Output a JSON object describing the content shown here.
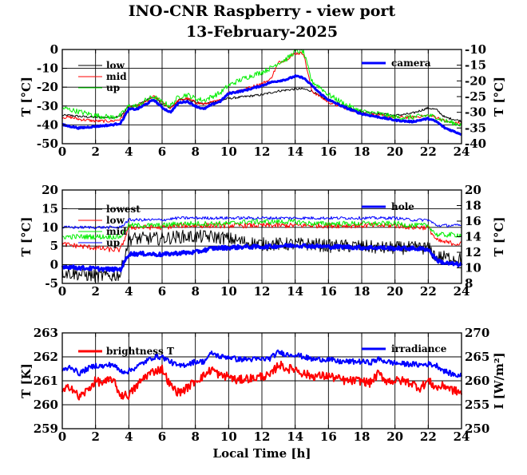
{
  "title": "INO-CNR Raspberry - view port",
  "subtitle": "13-February-2025",
  "xlabel": "Local Time [h]",
  "colors": {
    "black": "#000000",
    "red": "#ff0000",
    "green": "#00ee00",
    "blue": "#0000ff"
  },
  "chart_data": [
    {
      "type": "line",
      "ylabel": "T [°C]",
      "ylabel_right": "T [°C]",
      "xlim": [
        0,
        24
      ],
      "ylim": [
        -50,
        0
      ],
      "ylim_right": [
        -40,
        -10
      ],
      "x_ticks": [
        "0",
        "2",
        "4",
        "6",
        "8",
        "10",
        "12",
        "14",
        "16",
        "18",
        "20",
        "22",
        "24"
      ],
      "y_ticks": [
        "-50",
        "-40",
        "-30",
        "-20",
        "-10",
        "0"
      ],
      "y_ticks_right": [
        "-40",
        "-35",
        "-30",
        "-25",
        "-20",
        "-15",
        "-10"
      ],
      "grid": true,
      "series": [
        {
          "name": "low",
          "axis": "left",
          "color": "black",
          "width": 1,
          "noise": 0.6,
          "x": [
            0,
            0.5,
            1,
            2,
            3,
            3.5,
            4,
            4.5,
            5,
            5.5,
            6,
            6.5,
            7,
            7.5,
            8,
            8.5,
            9,
            9.5,
            10,
            11,
            12,
            13,
            14,
            14.5,
            15,
            15.5,
            16,
            17,
            18,
            19,
            20,
            21,
            22,
            22.5,
            23,
            23.5,
            24
          ],
          "y": [
            -35,
            -35,
            -35.5,
            -36,
            -36,
            -35.5,
            -30,
            -30,
            -27,
            -25,
            -29,
            -31,
            -27,
            -26,
            -28,
            -29,
            -28,
            -27,
            -26,
            -25,
            -24,
            -22,
            -21,
            -21,
            -22,
            -25,
            -27,
            -30,
            -33,
            -34,
            -35,
            -34,
            -31,
            -32,
            -36,
            -37,
            -38
          ]
        },
        {
          "name": "mid",
          "axis": "left",
          "color": "red",
          "width": 1,
          "noise": 0.8,
          "x": [
            0,
            0.5,
            1,
            2,
            3,
            3.5,
            4,
            4.5,
            5,
            5.5,
            6,
            6.5,
            7,
            7.5,
            8,
            8.5,
            9,
            9.5,
            10,
            11,
            12,
            12.5,
            13,
            13.5,
            14,
            14.5,
            15,
            15.5,
            16,
            17,
            18,
            19,
            20,
            21,
            22,
            22.5,
            23,
            23.5,
            24
          ],
          "y": [
            -36,
            -36,
            -37,
            -38,
            -38,
            -37,
            -31,
            -30,
            -28,
            -25,
            -28,
            -31,
            -27,
            -26,
            -28,
            -29,
            -28,
            -27,
            -23,
            -21,
            -18,
            -16,
            -7,
            -5,
            -2,
            -2,
            -22,
            -25,
            -28,
            -31,
            -34,
            -35,
            -36,
            -36,
            -35,
            -36,
            -38,
            -39,
            -39
          ]
        },
        {
          "name": "up",
          "axis": "left",
          "color": "green",
          "width": 1,
          "noise": 1.4,
          "x": [
            0,
            0.5,
            1,
            2,
            3,
            3.5,
            4,
            4.5,
            5,
            5.5,
            6,
            6.5,
            7,
            7.5,
            8,
            8.5,
            9,
            9.5,
            10,
            11,
            12,
            12.5,
            13,
            13.5,
            14,
            14.5,
            15,
            15.5,
            16,
            17,
            18,
            19,
            20,
            21,
            22,
            22.5,
            23,
            23.5,
            24
          ],
          "y": [
            -31,
            -32,
            -33,
            -35,
            -36,
            -35,
            -30,
            -30,
            -27,
            -25,
            -28,
            -30,
            -25,
            -24,
            -26,
            -27,
            -25,
            -23,
            -19,
            -15,
            -12,
            -10,
            -7,
            -5,
            -1,
            -1,
            -17,
            -20,
            -24,
            -29,
            -33,
            -34,
            -36,
            -36,
            -35,
            -36,
            -38,
            -39,
            -40
          ]
        },
        {
          "name": "camera",
          "axis": "right",
          "color": "blue",
          "width": 3,
          "noise": 0.25,
          "x": [
            0,
            0.5,
            1,
            2,
            3,
            3.5,
            4,
            4.5,
            5,
            5.5,
            6,
            6.5,
            7,
            7.5,
            8,
            8.5,
            9,
            9.5,
            10,
            11,
            12,
            12.5,
            13,
            13.5,
            14,
            14.5,
            15,
            15.5,
            16,
            17,
            18,
            19,
            20,
            21,
            22,
            22.5,
            23,
            23.5,
            24
          ],
          "y": [
            -34,
            -34.5,
            -35,
            -34.5,
            -34,
            -33.5,
            -29,
            -29,
            -27.5,
            -26,
            -28.5,
            -30,
            -27,
            -26.5,
            -28,
            -29,
            -27.5,
            -26.5,
            -24,
            -23,
            -21.5,
            -20.5,
            -20,
            -19.5,
            -18.5,
            -19,
            -21.5,
            -24,
            -26,
            -28.5,
            -30.5,
            -31.5,
            -32.5,
            -33,
            -32,
            -33,
            -35,
            -36,
            -37
          ]
        }
      ],
      "legend_left": [
        "low",
        "mid",
        "up"
      ],
      "legend_right": [
        "camera"
      ]
    },
    {
      "type": "line",
      "ylabel": "T [°C]",
      "ylabel_right": "T [°C]",
      "xlim": [
        0,
        24
      ],
      "ylim": [
        -5,
        20
      ],
      "ylim_right": [
        8,
        20
      ],
      "x_ticks": [
        "0",
        "2",
        "4",
        "6",
        "8",
        "10",
        "12",
        "14",
        "16",
        "18",
        "20",
        "22",
        "24"
      ],
      "y_ticks": [
        "-5",
        "0",
        "5",
        "10",
        "15",
        "20"
      ],
      "y_ticks_right": [
        "8",
        "10",
        "12",
        "14",
        "16",
        "18",
        "20"
      ],
      "grid": true,
      "series": [
        {
          "name": "lowest",
          "axis": "left",
          "color": "black",
          "width": 1,
          "noise": 1.8,
          "x": [
            0,
            1,
            2,
            3,
            3.5,
            4,
            5,
            6,
            7,
            8,
            9,
            10,
            11,
            12,
            13,
            14,
            15,
            16,
            17,
            18,
            19,
            20,
            21,
            22,
            22.5,
            23,
            24
          ],
          "y": [
            -2,
            -2.5,
            -3,
            -3,
            -2.5,
            7,
            7,
            7,
            7.5,
            7.5,
            7.5,
            7,
            6,
            5.5,
            5.5,
            5.5,
            5.5,
            5,
            5,
            5,
            4.5,
            4.5,
            4.5,
            4.5,
            2,
            2,
            1.5
          ]
        },
        {
          "name": "low",
          "axis": "left",
          "color": "red",
          "width": 1,
          "noise": 0.7,
          "x": [
            0,
            1,
            2,
            3,
            3.5,
            4,
            5,
            6,
            7,
            8,
            9,
            10,
            11,
            12,
            13,
            14,
            15,
            16,
            17,
            18,
            19,
            20,
            21,
            22,
            22.5,
            23,
            24
          ],
          "y": [
            5.5,
            5,
            4.5,
            4,
            4,
            10,
            10,
            10,
            10.5,
            10.5,
            10.5,
            10.5,
            10.5,
            10.5,
            10.5,
            10.5,
            10.5,
            10.5,
            10.5,
            10.5,
            10.5,
            10.5,
            10,
            10,
            6.5,
            6,
            5.5
          ]
        },
        {
          "name": "mid",
          "axis": "left",
          "color": "green",
          "width": 1,
          "noise": 0.7,
          "x": [
            0,
            1,
            2,
            3,
            3.5,
            4,
            5,
            6,
            7,
            8,
            9,
            10,
            11,
            12,
            13,
            14,
            15,
            16,
            17,
            18,
            19,
            20,
            21,
            22,
            22.5,
            23,
            24
          ],
          "y": [
            7.5,
            7.5,
            7.5,
            7.5,
            7.5,
            10.5,
            10.5,
            10.5,
            11,
            11,
            11,
            11,
            11.5,
            11.5,
            11.5,
            11.5,
            11,
            11,
            11,
            11,
            11,
            11,
            10.5,
            10.5,
            8,
            8,
            8
          ]
        },
        {
          "name": "up",
          "axis": "left",
          "color": "blue",
          "width": 1,
          "noise": 0.4,
          "x": [
            0,
            1,
            2,
            3,
            3.5,
            4,
            5,
            6,
            7,
            8,
            9,
            10,
            11,
            12,
            13,
            14,
            15,
            16,
            17,
            18,
            19,
            20,
            21,
            22,
            22.5,
            23,
            24
          ],
          "y": [
            10,
            10,
            10,
            10,
            10,
            12,
            12,
            12,
            12.5,
            12.5,
            12.5,
            12.5,
            12.5,
            12.5,
            12.5,
            12.5,
            12.5,
            12.5,
            12.5,
            12.5,
            12.5,
            12.5,
            12,
            12,
            10.5,
            10.5,
            10.5
          ]
        },
        {
          "name": "hole",
          "axis": "right",
          "color": "blue",
          "width": 3,
          "noise": 0.25,
          "x": [
            0,
            1,
            2,
            3,
            3.5,
            4,
            5,
            6,
            7,
            8,
            9,
            10,
            11,
            12,
            13,
            14,
            15,
            16,
            17,
            18,
            19,
            20,
            21,
            22,
            22.5,
            23,
            24
          ],
          "y": [
            10.2,
            10,
            9.9,
            9.8,
            9.8,
            11.8,
            11.8,
            11.7,
            11.9,
            12,
            12.5,
            12.6,
            12.7,
            12.7,
            12.8,
            12.9,
            12.8,
            12.7,
            12.7,
            12.6,
            12.6,
            12.5,
            12.5,
            12.4,
            11,
            10.6,
            10.4
          ]
        }
      ],
      "legend_left": [
        "lowest",
        "low",
        "mid",
        "up"
      ],
      "legend_right": [
        "hole"
      ]
    },
    {
      "type": "line",
      "ylabel": "T [K]",
      "ylabel_right": "I [W/m²]",
      "xlim": [
        0,
        24
      ],
      "ylim": [
        259,
        263
      ],
      "ylim_right": [
        250,
        270
      ],
      "x_ticks": [
        "0",
        "2",
        "4",
        "6",
        "8",
        "10",
        "12",
        "14",
        "16",
        "18",
        "20",
        "22",
        "24"
      ],
      "y_ticks": [
        "259",
        "260",
        "261",
        "262",
        "263"
      ],
      "y_ticks_right": [
        "250",
        "255",
        "260",
        "265",
        "270"
      ],
      "grid": true,
      "series": [
        {
          "name": "brightness T",
          "axis": "left",
          "color": "red",
          "width": 2,
          "noise": 0.18,
          "x": [
            0,
            0.5,
            1,
            1.5,
            2,
            2.5,
            3,
            3.5,
            4,
            4.5,
            5,
            5.5,
            6,
            6.5,
            7,
            7.5,
            8,
            8.5,
            9,
            9.5,
            10,
            10.5,
            11,
            11.5,
            12,
            12.5,
            13,
            13.5,
            14,
            14.5,
            15,
            15.5,
            16,
            16.5,
            17,
            17.5,
            18,
            18.5,
            19,
            19.5,
            20,
            20.5,
            21,
            21.5,
            22,
            22.5,
            23,
            23.5,
            24
          ],
          "y": [
            260.5,
            260.8,
            260.3,
            260.6,
            261,
            260.9,
            261.1,
            260.4,
            260.4,
            260.8,
            261.2,
            261.4,
            261.5,
            260.8,
            260.5,
            260.7,
            261,
            261.2,
            261.5,
            261.2,
            261.2,
            261,
            261.1,
            261.1,
            261.2,
            261.2,
            261.7,
            261.5,
            261.5,
            261.3,
            261.2,
            261.2,
            261.2,
            261.1,
            261,
            261,
            261,
            260.9,
            261.3,
            261,
            261,
            261,
            260.9,
            260.7,
            261,
            260.7,
            260.8,
            260.6,
            260.5
          ]
        },
        {
          "name": "irradiance",
          "axis": "right",
          "color": "blue",
          "width": 2,
          "noise": 0.55,
          "x": [
            0,
            0.5,
            1,
            1.5,
            2,
            2.5,
            3,
            3.5,
            4,
            4.5,
            5,
            5.5,
            6,
            6.5,
            7,
            7.5,
            8,
            8.5,
            9,
            9.5,
            10,
            10.5,
            11,
            11.5,
            12,
            12.5,
            13,
            13.5,
            14,
            14.5,
            15,
            15.5,
            16,
            16.5,
            17,
            17.5,
            18,
            18.5,
            19,
            19.5,
            20,
            20.5,
            21,
            21.5,
            22,
            22.5,
            23,
            23.5,
            24
          ],
          "y": [
            262,
            263,
            261.5,
            262.5,
            263.2,
            263,
            263.5,
            262,
            262,
            263,
            264,
            265,
            265,
            264,
            263,
            263.5,
            264,
            264,
            265.8,
            265,
            265,
            264.5,
            264.5,
            264.5,
            264.5,
            264.7,
            266,
            265.5,
            265.5,
            265,
            264.5,
            264.5,
            264.5,
            264,
            264,
            264,
            264,
            263.8,
            264.5,
            264,
            263.7,
            263.5,
            263.5,
            263.3,
            263.5,
            263.2,
            262,
            261.3,
            261
          ]
        }
      ],
      "legend_left": [
        "brightness T"
      ],
      "legend_right": [
        "irradiance"
      ]
    }
  ]
}
